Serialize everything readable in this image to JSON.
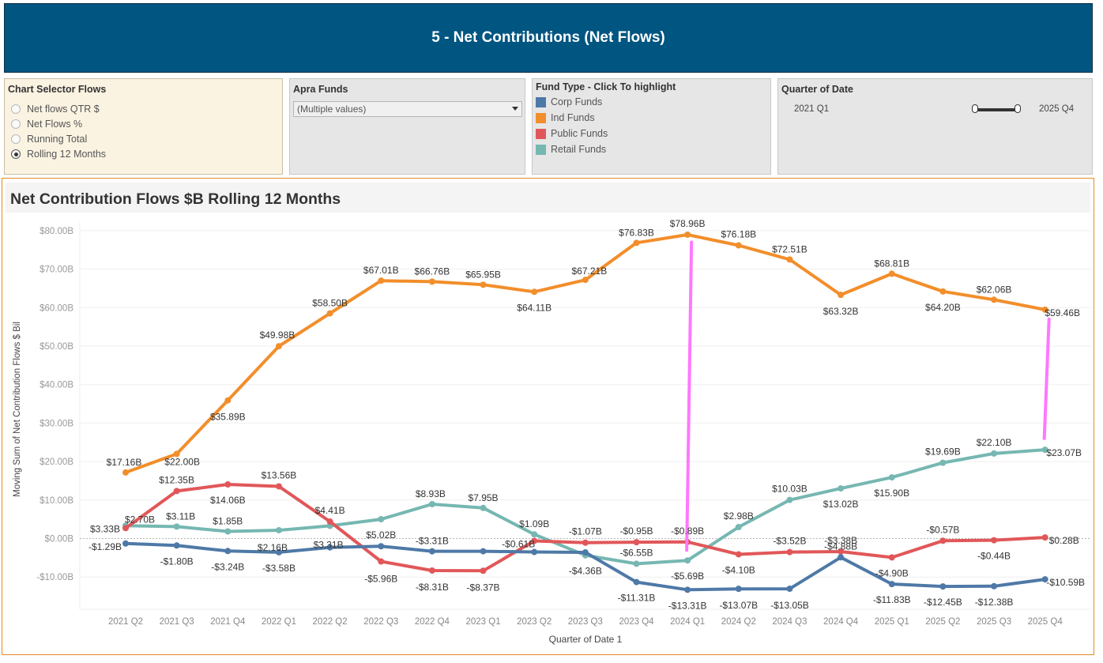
{
  "header": {
    "title": "5 - Net Contributions (Net Flows)"
  },
  "chart_selector": {
    "title": "Chart Selector Flows",
    "options": [
      "Net flows QTR $",
      "Net Flows %",
      "Running Total",
      "Rolling 12 Months"
    ],
    "selected_index": 3
  },
  "apra_funds": {
    "title": "Apra Funds",
    "value": "(Multiple values)"
  },
  "fund_type": {
    "title": "Fund Type - Click To highlight",
    "items": [
      {
        "label": "Corp Funds",
        "color": "#4e79a7"
      },
      {
        "label": "Ind Funds",
        "color": "#f28e2b"
      },
      {
        "label": "Public Funds",
        "color": "#e15759"
      },
      {
        "label": "Retail Funds",
        "color": "#76b7b2"
      }
    ]
  },
  "quarter_filter": {
    "title": "Quarter of Date",
    "start": "2021 Q1",
    "end": "2025 Q4"
  },
  "chart_data": {
    "type": "line",
    "title": "Net Contribution Flows $B Rolling 12 Months",
    "xlabel": "Quarter of Date 1",
    "ylabel": "Moving Sum of Net Contribution Flows $ Bil",
    "ylim": [
      -15,
      82
    ],
    "yticks": [
      -10,
      0,
      10,
      20,
      30,
      40,
      50,
      60,
      70,
      80
    ],
    "ytick_labels": [
      "-$10.00B",
      "$0.00B",
      "$10.00B",
      "$20.00B",
      "$30.00B",
      "$40.00B",
      "$50.00B",
      "$60.00B",
      "$70.00B",
      "$80.00B"
    ],
    "categories": [
      "2021 Q2",
      "2021 Q3",
      "2021 Q4",
      "2022 Q1",
      "2022 Q2",
      "2022 Q3",
      "2022 Q4",
      "2023 Q1",
      "2023 Q2",
      "2023 Q3",
      "2023 Q4",
      "2024 Q1",
      "2024 Q2",
      "2024 Q3",
      "2024 Q4",
      "2025 Q1",
      "2025 Q2",
      "2025 Q3",
      "2025 Q4"
    ],
    "series": [
      {
        "name": "Ind Funds",
        "color": "#f28e2b",
        "values": [
          17.16,
          22.0,
          35.89,
          49.98,
          58.5,
          67.01,
          66.76,
          65.95,
          64.11,
          67.21,
          76.83,
          78.96,
          76.18,
          72.51,
          63.32,
          68.81,
          64.2,
          62.06,
          59.46
        ],
        "labels": [
          "$17.16B",
          "$22.00B",
          "$35.89B",
          "$49.98B",
          "$58.50B",
          "$67.01B",
          "$66.76B",
          "$65.95B",
          "$64.11B",
          "$67.21B",
          "$76.83B",
          "$78.96B",
          "$76.18B",
          "$72.51B",
          "$63.32B",
          "$68.81B",
          "$64.20B",
          "$62.06B",
          "$59.46B"
        ]
      },
      {
        "name": "Retail Funds",
        "color": "#76b7b2",
        "values": [
          3.33,
          3.11,
          1.85,
          2.16,
          3.31,
          5.02,
          8.93,
          7.95,
          1.09,
          -4.36,
          -6.55,
          -5.69,
          2.98,
          10.03,
          13.02,
          15.9,
          19.69,
          22.1,
          23.07
        ],
        "labels": [
          "$3.33B",
          "$3.11B",
          "$1.85B",
          "$2.16B",
          "$3.31B",
          "$5.02B",
          "$8.93B",
          "$7.95B",
          "$1.09B",
          "-$4.36B",
          "-$6.55B",
          "-$5.69B",
          "$2.98B",
          "$10.03B",
          "$13.02B",
          "$15.90B",
          "$19.69B",
          "$22.10B",
          "$23.07B"
        ]
      },
      {
        "name": "Public Funds",
        "color": "#e15759",
        "values": [
          2.7,
          12.35,
          14.06,
          13.56,
          4.41,
          -5.96,
          -8.31,
          -8.37,
          -0.61,
          -1.07,
          -0.95,
          -0.89,
          -4.1,
          -3.52,
          -3.38,
          -4.9,
          -0.57,
          -0.44,
          0.28
        ],
        "labels": [
          "$2.70B",
          "$12.35B",
          "$14.06B",
          "$13.56B",
          "$4.41B",
          "-$5.96B",
          "-$8.31B",
          "-$8.37B",
          "-$0.61B",
          "-$1.07B",
          "-$0.95B",
          "-$0.89B",
          "-$4.10B",
          "-$3.52B",
          "-$3.38B",
          "-$4.90B",
          "-$0.57B",
          "-$0.44B",
          "$0.28B"
        ]
      },
      {
        "name": "Corp Funds",
        "color": "#4e79a7",
        "values": [
          -1.29,
          -1.8,
          -3.24,
          -3.58,
          -2.3,
          -2.0,
          -3.31,
          -3.3,
          -3.5,
          -3.6,
          -11.31,
          -13.31,
          -13.07,
          -13.05,
          -4.88,
          -11.83,
          -12.45,
          -12.38,
          -10.59
        ],
        "labels": [
          "-$1.29B",
          "-$1.80B",
          "-$3.24B",
          "-$3.58B",
          "",
          "",
          "-$3.31B",
          "",
          "",
          "",
          "-$11.31B",
          "-$13.31B",
          "-$13.07B",
          "-$13.05B",
          "-$4.88B",
          "-$11.83B",
          "-$12.45B",
          "-$12.38B",
          "-$10.59B"
        ]
      }
    ],
    "annotations": [
      {
        "type": "line",
        "color": "#ff77ff",
        "category": "2024 Q1",
        "from": 77.0,
        "to": -3.0
      },
      {
        "type": "line",
        "color": "#ff77ff",
        "category": "2025 Q4",
        "from": 57.0,
        "to": 26.0
      }
    ]
  }
}
